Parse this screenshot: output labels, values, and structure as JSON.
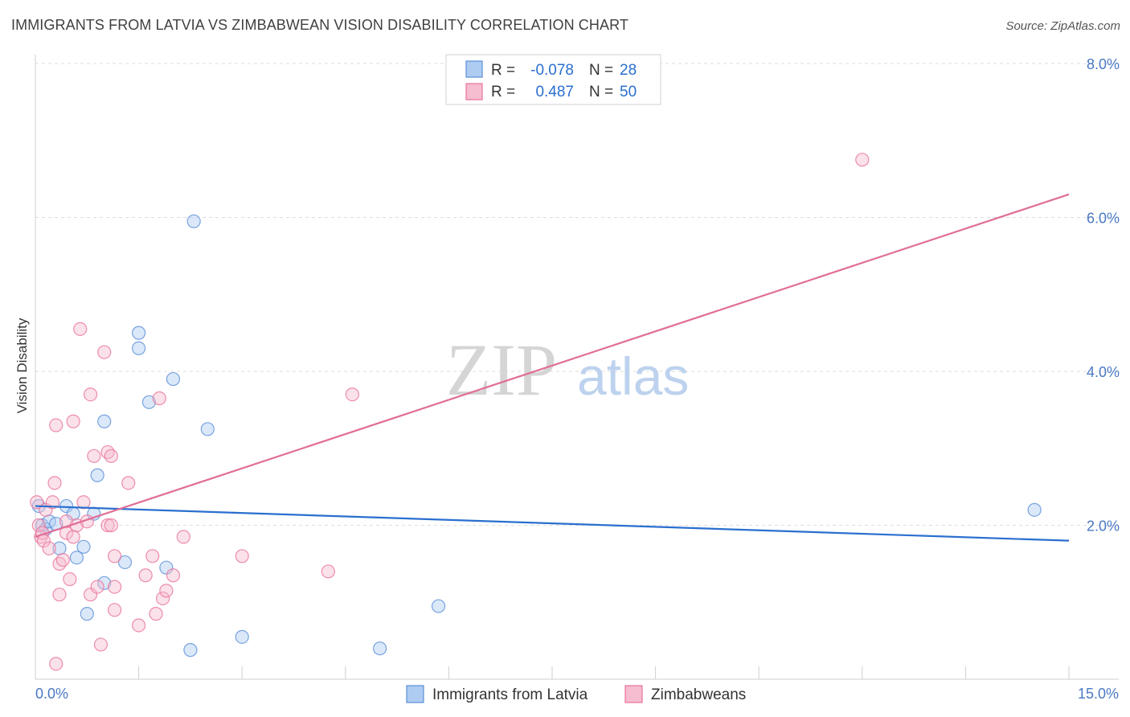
{
  "header": {
    "title": "IMMIGRANTS FROM LATVIA VS ZIMBABWEAN VISION DISABILITY CORRELATION CHART",
    "source": "Source: ZipAtlas.com"
  },
  "colors": {
    "blue": "#5b8fd8",
    "blue_fill": "#aecbf2",
    "pink": "#e8739a",
    "pink_fill": "#f6bccf",
    "tick": "#4a78c4",
    "blue_line": "#2a6fcf",
    "pink_line": "#e06e98"
  },
  "watermark": {
    "zip": "ZIP",
    "atlas": "atlas"
  },
  "legend": {
    "rows": [
      {
        "r_label": "R =",
        "r_value": "-0.078",
        "n_label": "N =",
        "n_value": "28"
      },
      {
        "r_label": "R =",
        "r_value": "0.487",
        "n_label": "N =",
        "n_value": "50"
      }
    ]
  },
  "chart_data": {
    "type": "scatter",
    "title": "IMMIGRANTS FROM LATVIA VS ZIMBABWEAN VISION DISABILITY CORRELATION CHART",
    "xlabel": "",
    "ylabel": "Vision Disability",
    "xlim": [
      0,
      15
    ],
    "ylim": [
      0,
      8
    ],
    "x_tick_labels": [
      "0.0%",
      "15.0%"
    ],
    "y_ticks": [
      2,
      4,
      6,
      8
    ],
    "y_tick_labels": [
      "2.0%",
      "4.0%",
      "6.0%",
      "8.0%"
    ],
    "legend_position": "top-center",
    "series": [
      {
        "name": "Immigrants from Latvia",
        "color": "#5b8fd8",
        "trend": {
          "x": [
            0,
            15
          ],
          "y": [
            2.25,
            1.8
          ]
        },
        "points": [
          [
            0.05,
            2.25
          ],
          [
            0.1,
            2.0
          ],
          [
            0.15,
            1.95
          ],
          [
            0.2,
            2.05
          ],
          [
            0.3,
            2.02
          ],
          [
            0.35,
            1.7
          ],
          [
            0.45,
            2.25
          ],
          [
            0.55,
            2.15
          ],
          [
            0.6,
            1.58
          ],
          [
            0.7,
            1.72
          ],
          [
            0.75,
            0.85
          ],
          [
            0.85,
            2.15
          ],
          [
            0.9,
            2.65
          ],
          [
            1.0,
            3.35
          ],
          [
            1.0,
            1.25
          ],
          [
            1.3,
            1.52
          ],
          [
            1.5,
            4.3
          ],
          [
            1.5,
            4.5
          ],
          [
            1.65,
            3.6
          ],
          [
            1.9,
            1.45
          ],
          [
            2.0,
            3.9
          ],
          [
            2.25,
            0.38
          ],
          [
            2.3,
            5.95
          ],
          [
            2.5,
            3.25
          ],
          [
            3.0,
            0.55
          ],
          [
            5.0,
            0.4
          ],
          [
            5.85,
            0.95
          ],
          [
            14.5,
            2.2
          ]
        ]
      },
      {
        "name": "Zimbabweans",
        "color": "#e8739a",
        "trend": {
          "x": [
            0,
            15
          ],
          "y": [
            1.85,
            6.3
          ]
        },
        "points": [
          [
            0.02,
            2.3
          ],
          [
            0.05,
            2.0
          ],
          [
            0.08,
            1.85
          ],
          [
            0.1,
            1.9
          ],
          [
            0.12,
            1.8
          ],
          [
            0.15,
            2.2
          ],
          [
            0.2,
            1.7
          ],
          [
            0.25,
            2.3
          ],
          [
            0.28,
            2.55
          ],
          [
            0.3,
            3.3
          ],
          [
            0.35,
            1.5
          ],
          [
            0.35,
            1.1
          ],
          [
            0.4,
            1.55
          ],
          [
            0.45,
            2.05
          ],
          [
            0.45,
            1.9
          ],
          [
            0.5,
            1.3
          ],
          [
            0.55,
            3.35
          ],
          [
            0.55,
            1.85
          ],
          [
            0.6,
            2.0
          ],
          [
            0.65,
            4.55
          ],
          [
            0.7,
            2.3
          ],
          [
            0.75,
            2.05
          ],
          [
            0.8,
            3.7
          ],
          [
            0.8,
            1.1
          ],
          [
            0.85,
            2.9
          ],
          [
            0.9,
            1.2
          ],
          [
            0.95,
            0.45
          ],
          [
            1.0,
            4.25
          ],
          [
            1.05,
            2.0
          ],
          [
            1.05,
            2.95
          ],
          [
            1.1,
            2.0
          ],
          [
            1.1,
            2.9
          ],
          [
            1.15,
            1.2
          ],
          [
            1.15,
            0.9
          ],
          [
            1.15,
            1.6
          ],
          [
            1.35,
            2.55
          ],
          [
            1.5,
            0.7
          ],
          [
            1.6,
            1.35
          ],
          [
            1.7,
            1.6
          ],
          [
            1.75,
            0.85
          ],
          [
            1.8,
            3.65
          ],
          [
            1.85,
            1.05
          ],
          [
            1.9,
            1.15
          ],
          [
            2.0,
            1.35
          ],
          [
            2.15,
            1.85
          ],
          [
            3.0,
            1.6
          ],
          [
            4.25,
            1.4
          ],
          [
            4.6,
            3.7
          ],
          [
            12.0,
            6.75
          ],
          [
            0.3,
            0.2
          ]
        ]
      }
    ]
  },
  "bottom_legend": {
    "items": [
      {
        "label": "Immigrants from Latvia"
      },
      {
        "label": "Zimbabweans"
      }
    ]
  },
  "axes": {
    "y_title": "Vision Disability",
    "x_min_label": "0.0%",
    "x_max_label": "15.0%"
  }
}
